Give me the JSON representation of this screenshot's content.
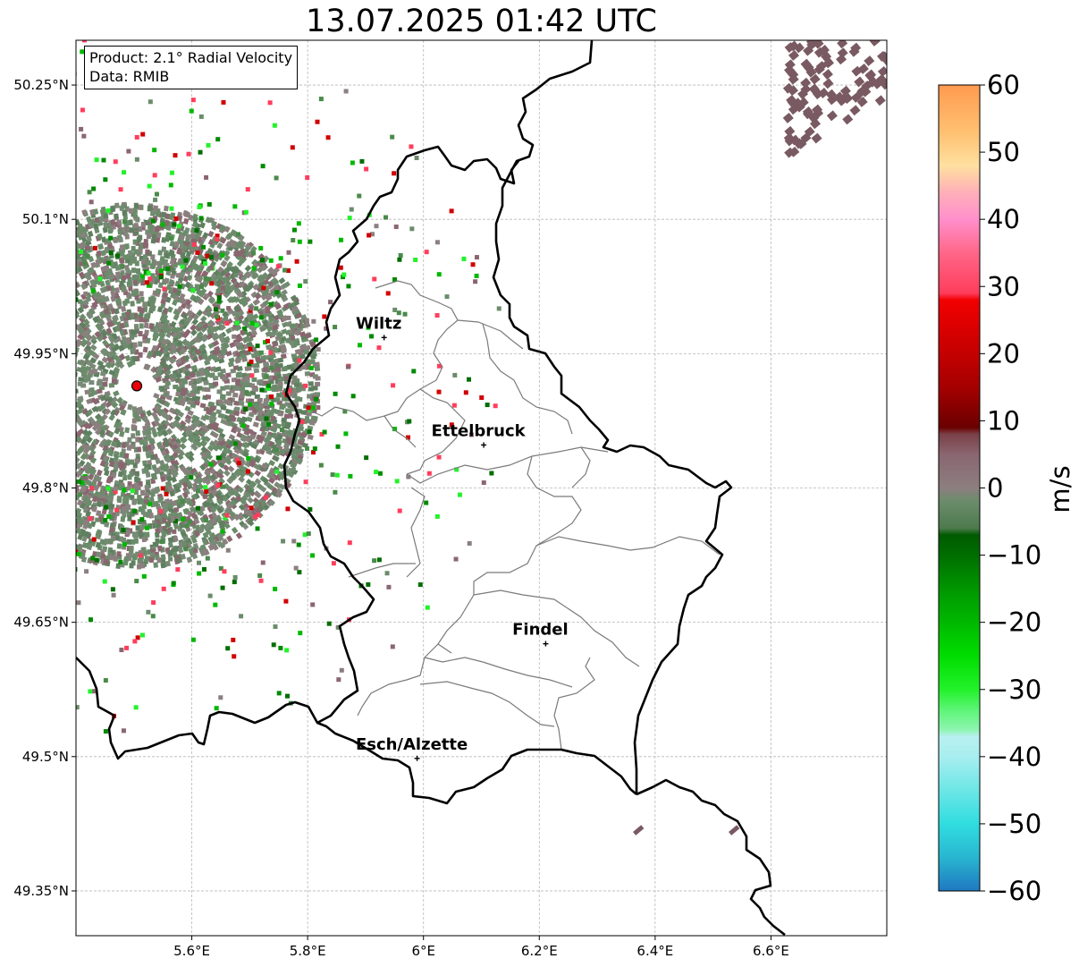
{
  "title": "13.07.2025 01:42 UTC",
  "info": {
    "product_line": "Product: 2.1° Radial Velocity",
    "data_line": "Data: RMIB"
  },
  "map": {
    "lon_range": [
      5.4,
      6.8
    ],
    "lat_range": [
      49.3,
      50.3
    ],
    "lon_ticks": [
      {
        "value": 5.6,
        "label": "5.6°E"
      },
      {
        "value": 5.8,
        "label": "5.8°E"
      },
      {
        "value": 6.0,
        "label": "6°E"
      },
      {
        "value": 6.2,
        "label": "6.2°E"
      },
      {
        "value": 6.4,
        "label": "6.4°E"
      },
      {
        "value": 6.6,
        "label": "6.6°E"
      }
    ],
    "lat_ticks": [
      {
        "value": 50.25,
        "label": "50.25°N"
      },
      {
        "value": 50.1,
        "label": "50.1°N"
      },
      {
        "value": 49.95,
        "label": "49.95°N"
      },
      {
        "value": 49.8,
        "label": "49.8°N"
      },
      {
        "value": 49.65,
        "label": "49.65°N"
      },
      {
        "value": 49.5,
        "label": "49.5°N"
      },
      {
        "value": 49.35,
        "label": "49.35°N"
      }
    ],
    "gridlines": true,
    "radar_site": {
      "lon": 5.505,
      "lat": 49.914,
      "color": "#e8000b"
    },
    "cities": [
      {
        "name": "Wiltz",
        "lon": 5.932,
        "lat": 49.968
      },
      {
        "name": "Ettelbruck",
        "lon": 6.104,
        "lat": 49.848
      },
      {
        "name": "Findel",
        "lon": 6.211,
        "lat": 49.626
      },
      {
        "name": "Esch/Alzette",
        "lon": 5.989,
        "lat": 49.498
      }
    ]
  },
  "colorbar": {
    "label": "m/s",
    "range": [
      -60,
      60
    ],
    "ticks": [
      {
        "value": 60,
        "label": "60"
      },
      {
        "value": 50,
        "label": "50"
      },
      {
        "value": 40,
        "label": "40"
      },
      {
        "value": 30,
        "label": "30"
      },
      {
        "value": 20,
        "label": "20"
      },
      {
        "value": 10,
        "label": "10"
      },
      {
        "value": 0,
        "label": "0"
      },
      {
        "value": -10,
        "label": "−10"
      },
      {
        "value": -20,
        "label": "−20"
      },
      {
        "value": -30,
        "label": "−30"
      },
      {
        "value": -40,
        "label": "−40"
      },
      {
        "value": -50,
        "label": "−50"
      },
      {
        "value": -60,
        "label": "−60"
      }
    ],
    "stops": [
      {
        "v": -60,
        "color": "#1f78c1"
      },
      {
        "v": -55,
        "color": "#29b6d0"
      },
      {
        "v": -50,
        "color": "#30dde0"
      },
      {
        "v": -45,
        "color": "#6de6e6"
      },
      {
        "v": -40,
        "color": "#a8eef0"
      },
      {
        "v": -37,
        "color": "#b8f0f0"
      },
      {
        "v": -36,
        "color": "#8ef5b0"
      },
      {
        "v": -33,
        "color": "#5cf576"
      },
      {
        "v": -30,
        "color": "#22f22a"
      },
      {
        "v": -25,
        "color": "#00dd00"
      },
      {
        "v": -20,
        "color": "#00b800"
      },
      {
        "v": -15,
        "color": "#009600"
      },
      {
        "v": -10,
        "color": "#006e00"
      },
      {
        "v": -7,
        "color": "#005a00"
      },
      {
        "v": -6,
        "color": "#4d7a4d"
      },
      {
        "v": -2,
        "color": "#6b8c6b"
      },
      {
        "v": 0,
        "color": "#8c7f7f"
      },
      {
        "v": 5,
        "color": "#8a6670"
      },
      {
        "v": 8,
        "color": "#7a4048"
      },
      {
        "v": 9,
        "color": "#6a0000"
      },
      {
        "v": 15,
        "color": "#a50000"
      },
      {
        "v": 22,
        "color": "#d00000"
      },
      {
        "v": 28,
        "color": "#f20000"
      },
      {
        "v": 29,
        "color": "#ff3d5c"
      },
      {
        "v": 35,
        "color": "#ff6688"
      },
      {
        "v": 40,
        "color": "#ff8fcc"
      },
      {
        "v": 44,
        "color": "#ffb0b8"
      },
      {
        "v": 48,
        "color": "#ffe0a0"
      },
      {
        "v": 53,
        "color": "#ffc070"
      },
      {
        "v": 60,
        "color": "#ff9a50"
      }
    ]
  }
}
